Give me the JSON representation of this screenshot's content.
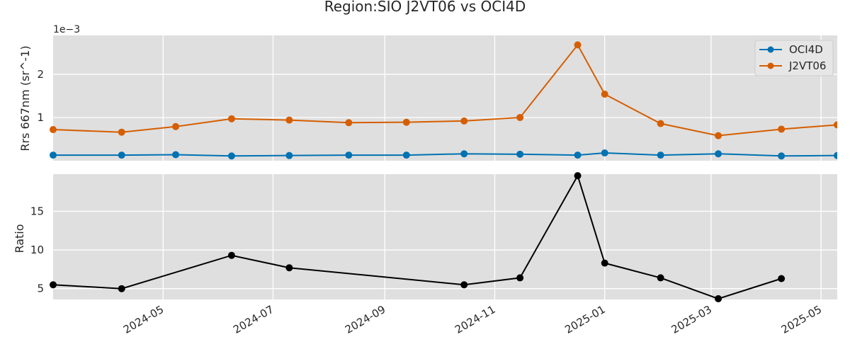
{
  "chart_data": [
    {
      "type": "line",
      "title": "Region:SIO J2VT06 vs OCI4D",
      "ylabel": "Rrs 667nm (sr^-1)",
      "y_offset_label": "1e−3",
      "y_scale": 0.001,
      "xlim": [
        "2024-03-01",
        "2025-05-10"
      ],
      "ylim": [
        0.0,
        0.0029
      ],
      "yticks": [
        0.001,
        0.002
      ],
      "ytick_labels": [
        "1",
        "2"
      ],
      "grid": true,
      "legend_position": "top-right",
      "series": [
        {
          "name": "OCI4D",
          "color": "#0072b2",
          "x": [
            "2024-03-01",
            "2024-04-08",
            "2024-05-08",
            "2024-06-08",
            "2024-07-10",
            "2024-08-12",
            "2024-09-13",
            "2024-10-15",
            "2024-11-15",
            "2024-12-17",
            "2025-01-01",
            "2025-02-01",
            "2025-03-05",
            "2025-04-09",
            "2025-05-10"
          ],
          "y": [
            0.00013,
            0.00013,
            0.00014,
            0.00011,
            0.00012,
            0.00013,
            0.00013,
            0.00016,
            0.00015,
            0.00013,
            0.00018,
            0.00013,
            0.00016,
            0.00011,
            0.00012
          ]
        },
        {
          "name": "J2VT06",
          "color": "#d55e00",
          "x": [
            "2024-03-01",
            "2024-04-08",
            "2024-05-08",
            "2024-06-08",
            "2024-07-10",
            "2024-08-12",
            "2024-09-13",
            "2024-10-15",
            "2024-11-15",
            "2024-12-17",
            "2025-01-01",
            "2025-02-01",
            "2025-03-05",
            "2025-04-09",
            "2025-05-10"
          ],
          "y": [
            0.00072,
            0.00066,
            0.00079,
            0.00097,
            0.00094,
            0.00088,
            0.00089,
            0.00092,
            0.001,
            0.00268,
            0.00154,
            0.00086,
            0.00058,
            0.00073,
            0.00083
          ]
        }
      ]
    },
    {
      "type": "line",
      "ylabel": "Ratio",
      "xlim": [
        "2024-03-01",
        "2025-05-10"
      ],
      "ylim": [
        3.6,
        19.8
      ],
      "yticks": [
        5,
        10,
        15
      ],
      "grid": true,
      "xtick_labels": [
        "2024-05",
        "2024-07",
        "2024-09",
        "2024-11",
        "2025-01",
        "2025-03",
        "2025-05"
      ],
      "xticks": [
        "2024-05-01",
        "2024-07-01",
        "2024-09-01",
        "2024-11-01",
        "2025-01-01",
        "2025-03-01",
        "2025-05-01"
      ],
      "series": [
        {
          "color": "#000000",
          "x": [
            "2024-03-01",
            "2024-04-08",
            "2024-06-08",
            "2024-07-10",
            "2024-10-15",
            "2024-11-15",
            "2024-12-17",
            "2025-01-01",
            "2025-02-01",
            "2025-03-05",
            "2025-04-09"
          ],
          "y": [
            5.5,
            5.0,
            9.3,
            7.7,
            5.5,
            6.4,
            19.6,
            8.3,
            6.4,
            3.7,
            6.3
          ]
        }
      ]
    }
  ]
}
